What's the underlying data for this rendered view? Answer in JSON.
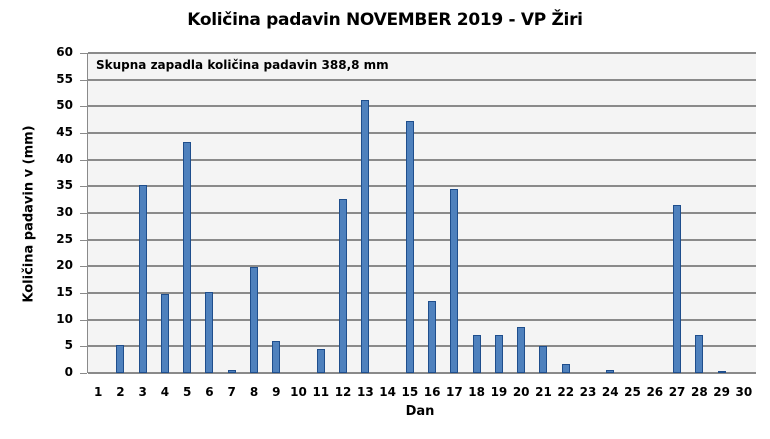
{
  "chart_data": {
    "type": "bar",
    "title": "Količina padavin NOVEMBER 2019 - VP Žiri",
    "xlabel": "Dan",
    "ylabel": "Količina padavin v  (mm)",
    "ylim": [
      0,
      60
    ],
    "yticks": [
      0,
      5,
      10,
      15,
      20,
      25,
      30,
      35,
      40,
      45,
      50,
      55,
      60
    ],
    "grid": true,
    "legend": null,
    "annotation": "Skupna zapadla količina padavin 388,8 mm",
    "categories": [
      "1",
      "2",
      "3",
      "4",
      "5",
      "6",
      "7",
      "8",
      "9",
      "10",
      "11",
      "12",
      "13",
      "14",
      "15",
      "16",
      "17",
      "18",
      "19",
      "20",
      "21",
      "22",
      "23",
      "24",
      "25",
      "26",
      "27",
      "28",
      "29",
      "30"
    ],
    "series": [
      {
        "name": "Količina padavin",
        "color": "#4f81bd",
        "values": [
          0,
          5.1,
          35.0,
          14.6,
          43.1,
          15.0,
          0.4,
          19.7,
          5.8,
          0,
          4.3,
          32.5,
          51.0,
          0,
          47.1,
          13.3,
          34.4,
          6.9,
          6.9,
          8.4,
          4.9,
          1.5,
          0,
          0.4,
          0,
          0,
          31.4,
          6.9,
          0.2,
          0
        ]
      }
    ]
  }
}
